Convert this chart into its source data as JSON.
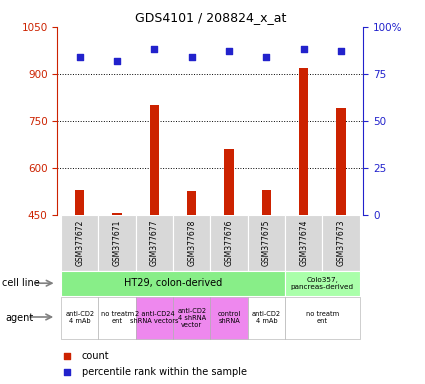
{
  "title": "GDS4101 / 208824_x_at",
  "samples": [
    "GSM377672",
    "GSM377671",
    "GSM377677",
    "GSM377678",
    "GSM377676",
    "GSM377675",
    "GSM377674",
    "GSM377673"
  ],
  "counts": [
    530,
    458,
    800,
    528,
    660,
    530,
    920,
    790
  ],
  "percentiles": [
    84,
    82,
    88,
    84,
    87,
    84,
    88,
    87
  ],
  "ylim_left": [
    450,
    1050
  ],
  "ylim_right": [
    0,
    100
  ],
  "yticks_left": [
    450,
    600,
    750,
    900,
    1050
  ],
  "yticks_right": [
    0,
    25,
    50,
    75,
    100
  ],
  "bar_color": "#cc2200",
  "dot_color": "#2222cc",
  "bar_width": 0.25,
  "background_color": "#ffffff",
  "left_axis_color": "#cc2200",
  "right_axis_color": "#2222cc",
  "cell_line_ht29_color": "#88ee88",
  "cell_line_colo_color": "#aaffaa",
  "agent_white_color": "#ffffff",
  "agent_pink_color": "#ee88ee",
  "agent_spans": [
    {
      "text": "anti-CD2\n4 mAb",
      "start": 0,
      "end": 0,
      "color": "#ffffff"
    },
    {
      "text": "no treatm\nent",
      "start": 1,
      "end": 1,
      "color": "#ffffff"
    },
    {
      "text": "2 anti-CD24\nshRNA vectors",
      "start": 2,
      "end": 2,
      "color": "#ee88ee"
    },
    {
      "text": "anti-CD2\n4 shRNA\nvector",
      "start": 3,
      "end": 3,
      "color": "#ee88ee"
    },
    {
      "text": "control\nshRNA",
      "start": 4,
      "end": 4,
      "color": "#ee88ee"
    },
    {
      "text": "anti-CD2\n4 mAb",
      "start": 5,
      "end": 5,
      "color": "#ffffff"
    },
    {
      "text": "no treatm\nent",
      "start": 6,
      "end": 7,
      "color": "#ffffff"
    }
  ]
}
